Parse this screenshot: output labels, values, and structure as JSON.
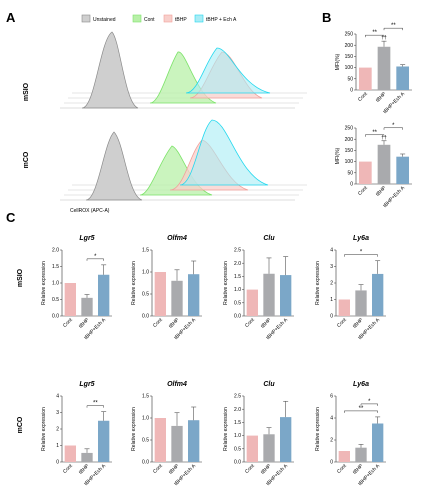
{
  "panels": {
    "A": "A",
    "B": "B",
    "C": "C"
  },
  "legend": [
    "Unstained",
    "Cont",
    "tBHP",
    "tBHP + Ech A"
  ],
  "row_labels": [
    "mSIO",
    "mCO"
  ],
  "xlabel_flow": "CellROX (APC-A)",
  "colors": {
    "unstained": "#9a9a9a",
    "cont": "#7de36a",
    "tbhp": "#f2a09a",
    "ech": "#22d8ee",
    "bar_cont": "#efb7b7",
    "bar_tbhp": "#a9aaad",
    "bar_ech": "#7ba7c8"
  },
  "bar_categories": [
    "Cont",
    "tBHP",
    "tBHP+Ech A"
  ],
  "chart_data": [
    {
      "type": "bar",
      "panel": "B",
      "row": "mSIO",
      "ylabel": "MFI(%)",
      "categories": [
        "Cont",
        "tBHP",
        "tBHP+Ech A"
      ],
      "values": [
        100,
        193,
        105
      ],
      "errors": [
        0,
        25,
        8
      ],
      "ylim": [
        0,
        250
      ],
      "yticks": [
        0,
        50,
        100,
        150,
        200,
        250
      ],
      "sig": [
        {
          "from": 0,
          "to": 1,
          "label": "**"
        },
        {
          "from": 1,
          "to": 2,
          "label": "**"
        }
      ],
      "annotation": "††"
    },
    {
      "type": "bar",
      "panel": "B",
      "row": "mCO",
      "ylabel": "MFI(%)",
      "categories": [
        "Cont",
        "tBHP",
        "tBHP+Ech A"
      ],
      "values": [
        100,
        175,
        122
      ],
      "errors": [
        0,
        18,
        12
      ],
      "ylim": [
        0,
        250
      ],
      "yticks": [
        0,
        50,
        100,
        150,
        200,
        250
      ],
      "sig": [
        {
          "from": 0,
          "to": 1,
          "label": "**"
        },
        {
          "from": 1,
          "to": 2,
          "label": "*"
        }
      ],
      "annotation": "††"
    },
    {
      "type": "bar",
      "panel": "C",
      "row": "mSIO",
      "title": "Lgr5",
      "ylabel": "Relative expression",
      "categories": [
        "Cont",
        "tBHP",
        "tBHP+Ech A"
      ],
      "values": [
        1.0,
        0.55,
        1.25
      ],
      "errors": [
        0,
        0.1,
        0.3
      ],
      "ylim": [
        0,
        2.0
      ],
      "yticks": [
        0.0,
        0.5,
        1.0,
        1.5,
        2.0
      ],
      "sig": [
        {
          "from": 1,
          "to": 2,
          "label": "*"
        }
      ]
    },
    {
      "type": "bar",
      "panel": "C",
      "row": "mSIO",
      "title": "Olfm4",
      "ylabel": "Relative expression",
      "categories": [
        "Cont",
        "tBHP",
        "tBHP+Ech A"
      ],
      "values": [
        1.0,
        0.8,
        0.95
      ],
      "errors": [
        0,
        0.25,
        0.3
      ],
      "ylim": [
        0,
        1.5
      ],
      "yticks": [
        0.0,
        0.5,
        1.0,
        1.5
      ],
      "sig": []
    },
    {
      "type": "bar",
      "panel": "C",
      "row": "mSIO",
      "title": "Clu",
      "ylabel": "Relative expression",
      "categories": [
        "Cont",
        "tBHP",
        "tBHP+Ech A"
      ],
      "values": [
        1.0,
        1.6,
        1.55
      ],
      "errors": [
        0,
        0.6,
        0.7
      ],
      "ylim": [
        0,
        2.5
      ],
      "yticks": [
        0.0,
        0.5,
        1.0,
        1.5,
        2.0,
        2.5
      ],
      "sig": []
    },
    {
      "type": "bar",
      "panel": "C",
      "row": "mSIO",
      "title": "Ly6a",
      "ylabel": "Relative expression",
      "categories": [
        "Cont",
        "tBHP",
        "tBHP+Ech A"
      ],
      "values": [
        1.0,
        1.55,
        2.55
      ],
      "errors": [
        0,
        0.35,
        0.8
      ],
      "ylim": [
        0,
        4
      ],
      "yticks": [
        0,
        1,
        2,
        3,
        4
      ],
      "sig": [
        {
          "from": 0,
          "to": 2,
          "label": "*"
        }
      ]
    },
    {
      "type": "bar",
      "panel": "C",
      "row": "mCO",
      "title": "Lgr5",
      "ylabel": "Relative expression",
      "categories": [
        "Cont",
        "tBHP",
        "tBHP+Ech A"
      ],
      "values": [
        1.0,
        0.55,
        2.5
      ],
      "errors": [
        0,
        0.25,
        0.55
      ],
      "ylim": [
        0,
        4
      ],
      "yticks": [
        0,
        1,
        2,
        3,
        4
      ],
      "sig": [
        {
          "from": 1,
          "to": 2,
          "label": "**"
        }
      ]
    },
    {
      "type": "bar",
      "panel": "C",
      "row": "mCO",
      "title": "Olfm4",
      "ylabel": "Relative expression",
      "categories": [
        "Cont",
        "tBHP",
        "tBHP+Ech A"
      ],
      "values": [
        1.0,
        0.82,
        0.95
      ],
      "errors": [
        0,
        0.3,
        0.3
      ],
      "ylim": [
        0,
        1.5
      ],
      "yticks": [
        0.0,
        0.5,
        1.0,
        1.5
      ],
      "sig": []
    },
    {
      "type": "bar",
      "panel": "C",
      "row": "mCO",
      "title": "Clu",
      "ylabel": "Relative expression",
      "categories": [
        "Cont",
        "tBHP",
        "tBHP+Ech A"
      ],
      "values": [
        1.0,
        1.05,
        1.7
      ],
      "errors": [
        0,
        0.25,
        0.6
      ],
      "ylim": [
        0,
        2.5
      ],
      "yticks": [
        0.0,
        0.5,
        1.0,
        1.5,
        2.0,
        2.5
      ],
      "sig": []
    },
    {
      "type": "bar",
      "panel": "C",
      "row": "mCO",
      "title": "Ly6a",
      "ylabel": "Relative expression",
      "categories": [
        "Cont",
        "tBHP",
        "tBHP+Ech A"
      ],
      "values": [
        1.0,
        1.3,
        3.5
      ],
      "errors": [
        0,
        0.3,
        0.6
      ],
      "ylim": [
        0,
        6
      ],
      "yticks": [
        0,
        2,
        4,
        6
      ],
      "sig": [
        {
          "from": 0,
          "to": 2,
          "label": "**"
        },
        {
          "from": 1,
          "to": 2,
          "label": "*"
        }
      ]
    }
  ]
}
